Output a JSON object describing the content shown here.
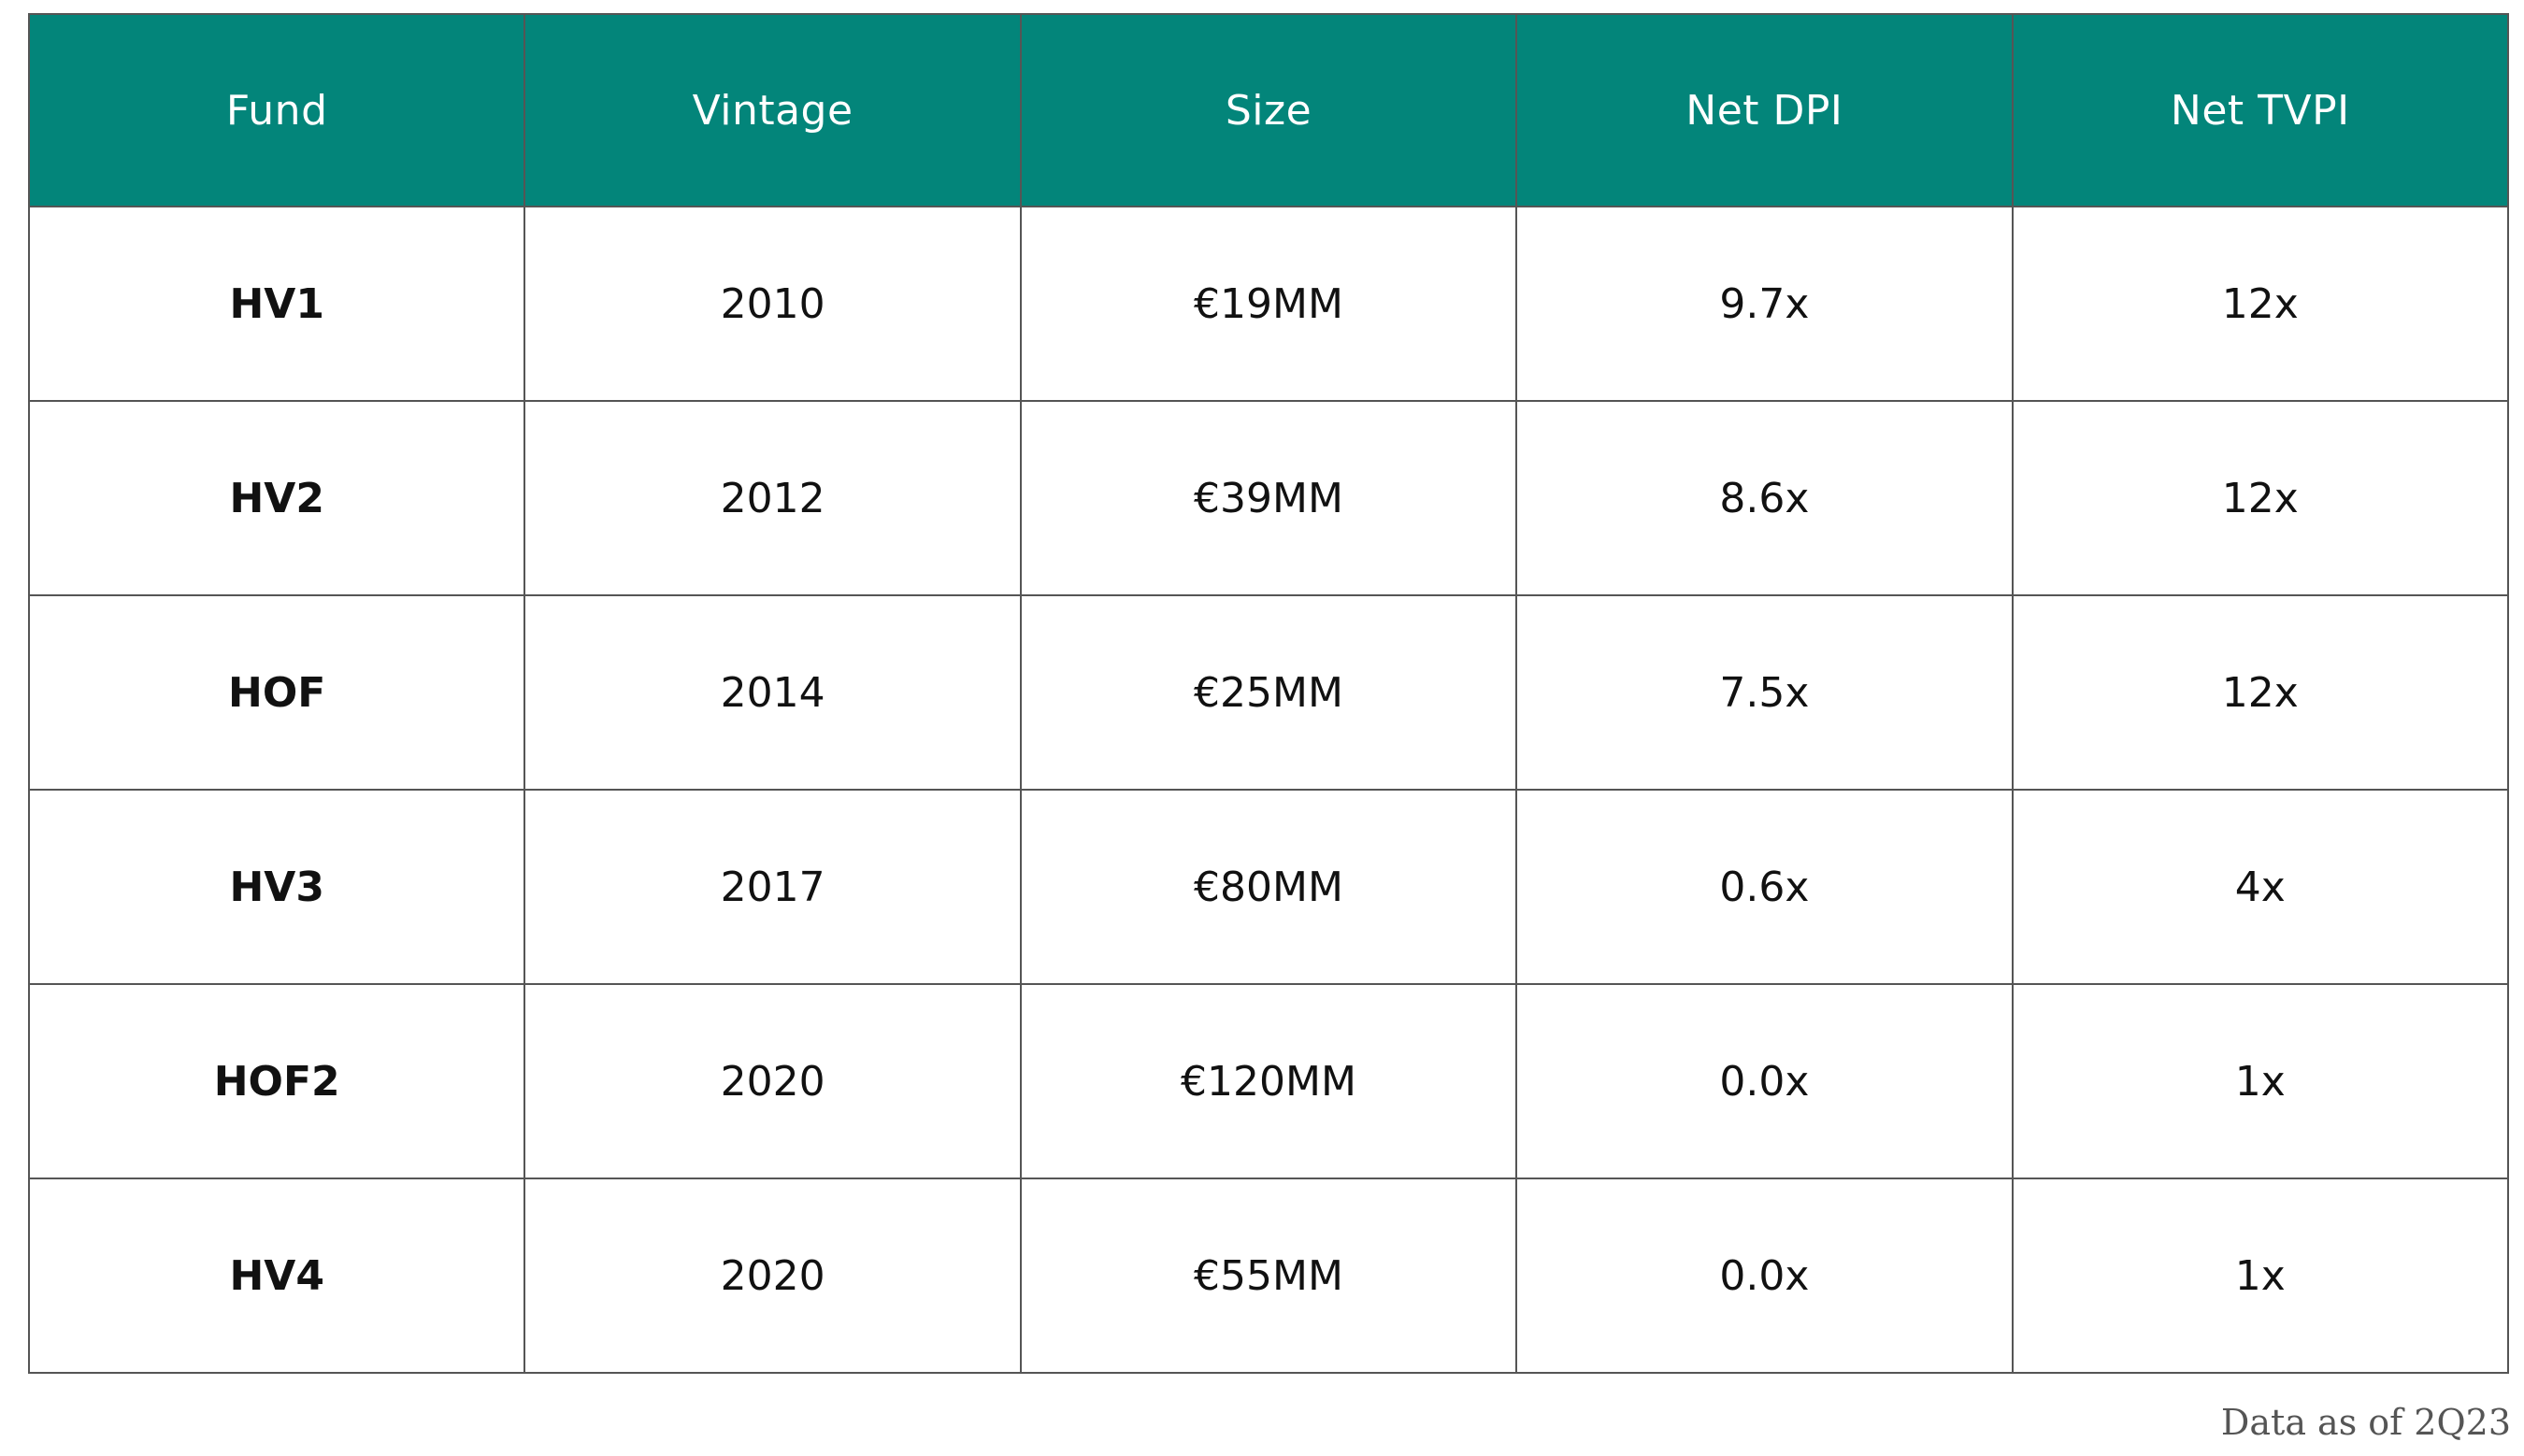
{
  "table": {
    "headers": {
      "fund": "Fund",
      "vintage": "Vintage",
      "size": "Size",
      "net_dpi": "Net DPI",
      "net_tvpi": "Net TVPI"
    },
    "rows": [
      {
        "fund": "HV1",
        "vintage": "2010",
        "size": "€19MM",
        "net_dpi": "9.7x",
        "net_tvpi": "12x"
      },
      {
        "fund": "HV2",
        "vintage": "2012",
        "size": "€39MM",
        "net_dpi": "8.6x",
        "net_tvpi": "12x"
      },
      {
        "fund": "HOF",
        "vintage": "2014",
        "size": "€25MM",
        "net_dpi": "7.5x",
        "net_tvpi": "12x"
      },
      {
        "fund": "HV3",
        "vintage": "2017",
        "size": "€80MM",
        "net_dpi": "0.6x",
        "net_tvpi": "4x"
      },
      {
        "fund": "HOF2",
        "vintage": "2020",
        "size": "€120MM",
        "net_dpi": "0.0x",
        "net_tvpi": "1x"
      },
      {
        "fund": "HV4",
        "vintage": "2020",
        "size": "€55MM",
        "net_dpi": "0.0x",
        "net_tvpi": "1x"
      }
    ]
  },
  "footnote": "Data as of 2Q23",
  "colors": {
    "header_background": "#03857a",
    "header_text": "#ffffff",
    "border": "#555555"
  }
}
